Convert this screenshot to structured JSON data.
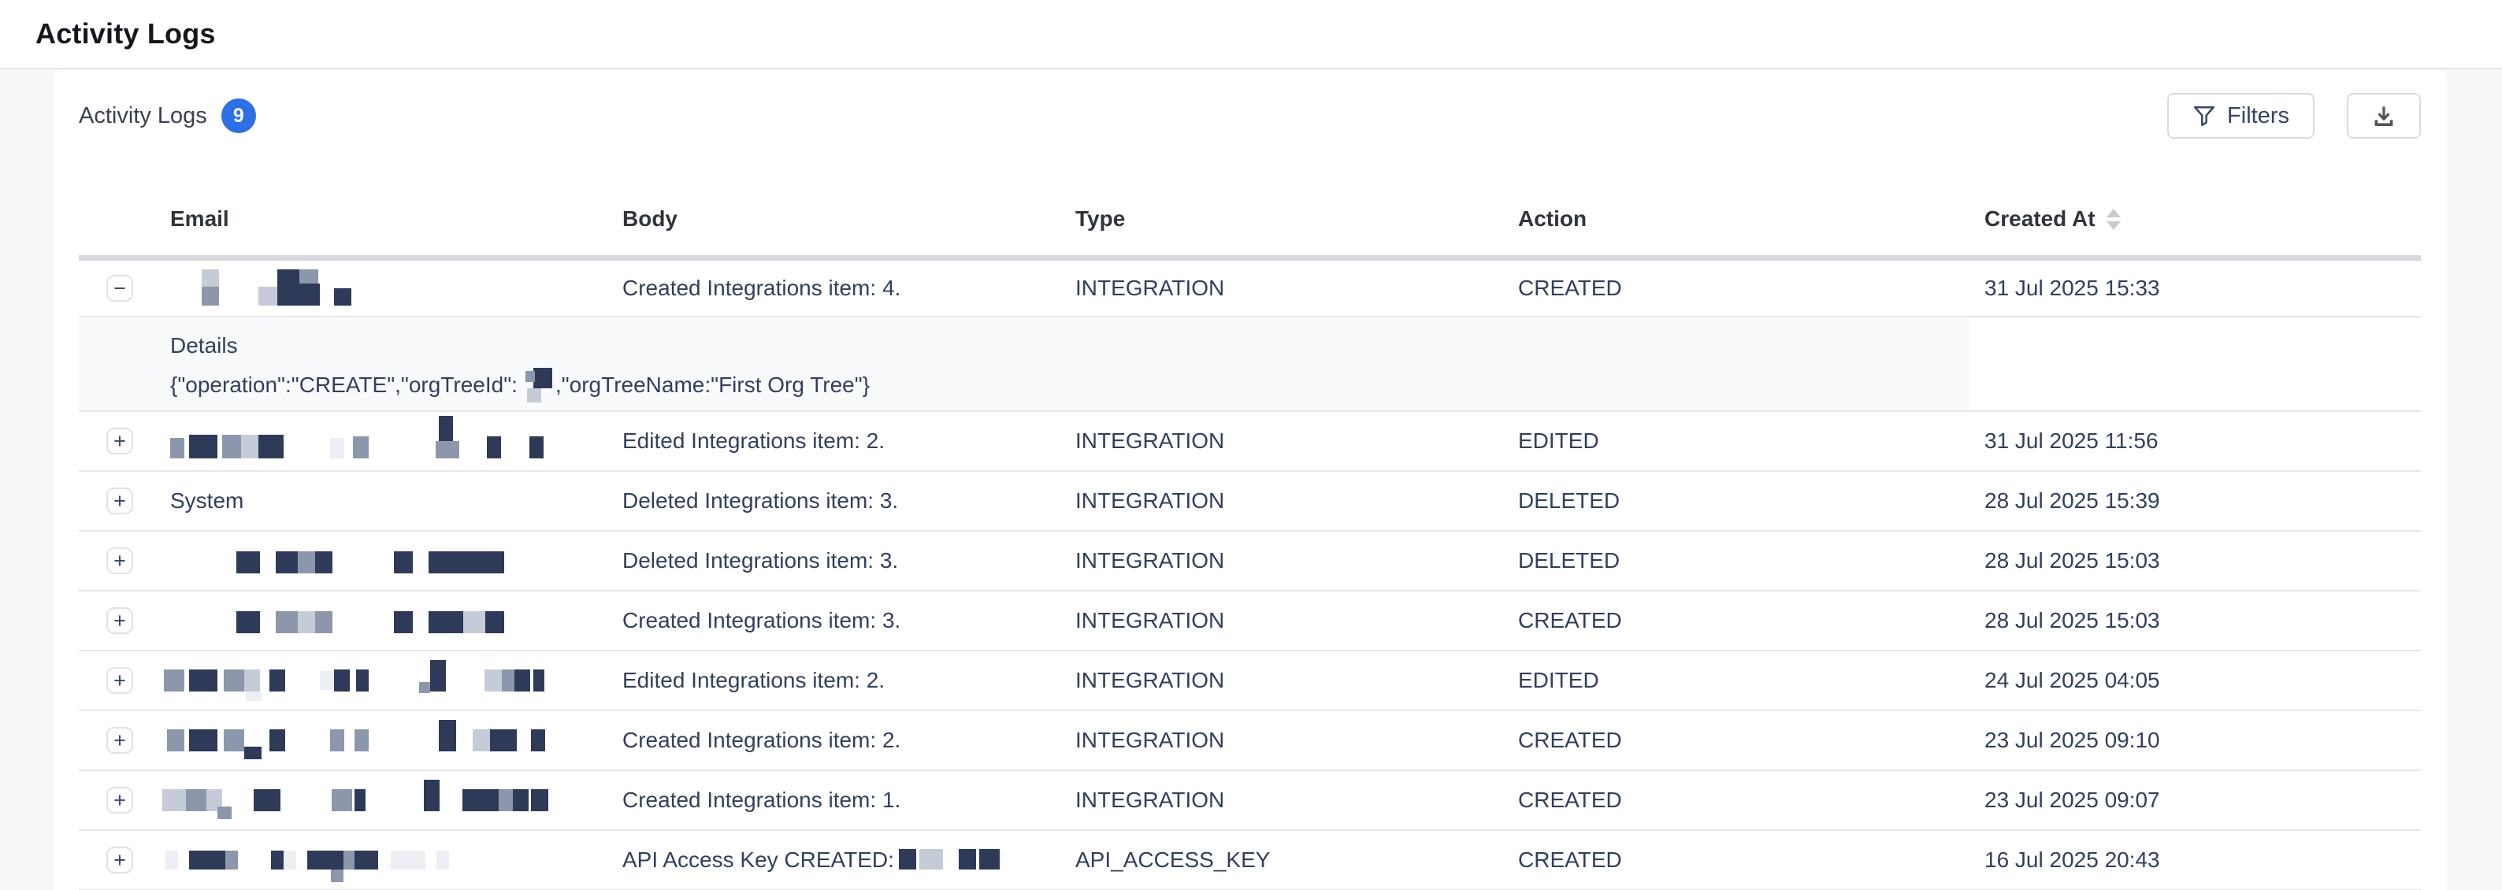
{
  "page": {
    "title": "Activity Logs"
  },
  "panel": {
    "heading": "Activity Logs",
    "count": "9",
    "filters_label": "Filters"
  },
  "table": {
    "columns": {
      "email": "Email",
      "body": "Body",
      "type": "Type",
      "action": "Action",
      "created_at": "Created At"
    },
    "sorted_column": "Created At",
    "rows": [
      {
        "expander": "−",
        "email_blocks": [
          [
            40,
            2,
            22,
            22,
            "l"
          ],
          [
            40,
            24,
            22,
            24,
            "m"
          ],
          [
            112,
            24,
            24,
            24,
            "l"
          ],
          [
            136,
            2,
            28,
            46,
            "n"
          ],
          [
            164,
            2,
            24,
            18,
            "m"
          ],
          [
            164,
            20,
            26,
            28,
            "n"
          ],
          [
            208,
            26,
            22,
            22,
            "n"
          ]
        ],
        "body": "Created Integrations item: 4.",
        "type": "INTEGRATION",
        "action": "CREATED",
        "created_at": "31 Jul 2025 15:33",
        "details": {
          "label": "Details",
          "json_prefix": "{\"operation\":\"CREATE\",\"orgTreeId\":",
          "json_suffix": ",\"orgTreeName:\"First Org Tree\"}",
          "block": [
            [
              10,
              2,
              24,
              26,
              "n"
            ],
            [
              0,
              6,
              12,
              14,
              "m"
            ],
            [
              2,
              28,
              18,
              18,
              "l"
            ]
          ]
        }
      },
      {
        "expander": "+",
        "email_blocks": [
          [
            0,
            22,
            18,
            26,
            "m"
          ],
          [
            24,
            18,
            36,
            30,
            "n"
          ],
          [
            66,
            18,
            24,
            30,
            "m"
          ],
          [
            90,
            18,
            22,
            30,
            "l"
          ],
          [
            112,
            18,
            32,
            30,
            "n"
          ],
          [
            203,
            22,
            18,
            26,
            "f"
          ],
          [
            232,
            20,
            20,
            28,
            "m"
          ],
          [
            341,
            -6,
            18,
            32,
            "n"
          ],
          [
            337,
            26,
            30,
            22,
            "m"
          ],
          [
            402,
            20,
            18,
            28,
            "n"
          ],
          [
            456,
            20,
            18,
            28,
            "n"
          ]
        ],
        "body": "Edited Integrations item: 2.",
        "type": "INTEGRATION",
        "action": "EDITED",
        "created_at": "31 Jul 2025 11:56"
      },
      {
        "expander": "+",
        "email_text": "System",
        "body": "Deleted Integrations item: 3.",
        "type": "INTEGRATION",
        "action": "DELETED",
        "created_at": "28 Jul 2025 15:39"
      },
      {
        "expander": "+",
        "email_blocks": [
          [
            84,
            14,
            30,
            28,
            "n"
          ],
          [
            134,
            14,
            28,
            28,
            "n"
          ],
          [
            162,
            14,
            22,
            28,
            "m"
          ],
          [
            184,
            14,
            22,
            28,
            "n"
          ],
          [
            284,
            14,
            24,
            28,
            "n"
          ],
          [
            328,
            14,
            96,
            28,
            "n"
          ]
        ],
        "body": "Deleted Integrations item: 3.",
        "type": "INTEGRATION",
        "action": "DELETED",
        "created_at": "28 Jul 2025 15:03"
      },
      {
        "expander": "+",
        "email_blocks": [
          [
            84,
            14,
            30,
            28,
            "n"
          ],
          [
            134,
            14,
            28,
            28,
            "m"
          ],
          [
            162,
            14,
            22,
            28,
            "l"
          ],
          [
            184,
            14,
            22,
            28,
            "m"
          ],
          [
            284,
            14,
            24,
            28,
            "n"
          ],
          [
            328,
            14,
            44,
            28,
            "n"
          ],
          [
            372,
            14,
            28,
            28,
            "l"
          ],
          [
            400,
            14,
            24,
            28,
            "n"
          ]
        ],
        "body": "Created Integrations item: 3.",
        "type": "INTEGRATION",
        "action": "CREATED",
        "created_at": "28 Jul 2025 15:03"
      },
      {
        "expander": "+",
        "email_blocks": [
          [
            -8,
            12,
            26,
            28,
            "m"
          ],
          [
            24,
            12,
            36,
            28,
            "n"
          ],
          [
            68,
            12,
            26,
            28,
            "m"
          ],
          [
            94,
            12,
            20,
            28,
            "l"
          ],
          [
            96,
            40,
            20,
            12,
            "f"
          ],
          [
            126,
            12,
            20,
            28,
            "n"
          ],
          [
            190,
            14,
            18,
            24,
            "f"
          ],
          [
            208,
            12,
            20,
            28,
            "n"
          ],
          [
            236,
            12,
            16,
            28,
            "n"
          ],
          [
            316,
            28,
            14,
            14,
            "m"
          ],
          [
            330,
            0,
            20,
            40,
            "n"
          ],
          [
            399,
            12,
            22,
            28,
            "l"
          ],
          [
            421,
            12,
            16,
            28,
            "m"
          ],
          [
            437,
            12,
            20,
            28,
            "n"
          ],
          [
            461,
            12,
            14,
            28,
            "n"
          ]
        ],
        "body": "Edited Integrations item: 2.",
        "type": "INTEGRATION",
        "action": "EDITED",
        "created_at": "24 Jul 2025 04:05"
      },
      {
        "expander": "+",
        "email_blocks": [
          [
            -4,
            12,
            22,
            28,
            "m"
          ],
          [
            24,
            12,
            36,
            28,
            "n"
          ],
          [
            68,
            12,
            26,
            28,
            "m"
          ],
          [
            94,
            34,
            22,
            16,
            "n"
          ],
          [
            126,
            12,
            20,
            28,
            "n"
          ],
          [
            203,
            12,
            18,
            28,
            "m"
          ],
          [
            234,
            12,
            18,
            28,
            "m"
          ],
          [
            341,
            0,
            22,
            40,
            "n"
          ],
          [
            384,
            12,
            22,
            28,
            "l"
          ],
          [
            406,
            12,
            34,
            28,
            "n"
          ],
          [
            458,
            12,
            18,
            28,
            "n"
          ]
        ],
        "body": "Created Integrations item: 2.",
        "type": "INTEGRATION",
        "action": "CREATED",
        "created_at": "23 Jul 2025 09:10"
      },
      {
        "expander": "+",
        "email_blocks": [
          [
            -10,
            12,
            30,
            28,
            "l"
          ],
          [
            20,
            12,
            26,
            28,
            "m"
          ],
          [
            46,
            12,
            20,
            28,
            "l"
          ],
          [
            60,
            34,
            18,
            16,
            "m"
          ],
          [
            106,
            12,
            34,
            28,
            "n"
          ],
          [
            205,
            12,
            26,
            28,
            "m"
          ],
          [
            234,
            12,
            14,
            28,
            "n"
          ],
          [
            322,
            0,
            20,
            40,
            "n"
          ],
          [
            371,
            12,
            46,
            28,
            "n"
          ],
          [
            417,
            12,
            18,
            28,
            "m"
          ],
          [
            435,
            12,
            20,
            28,
            "n"
          ],
          [
            458,
            12,
            22,
            28,
            "n"
          ]
        ],
        "body": "Created Integrations item: 1.",
        "type": "INTEGRATION",
        "action": "CREATED",
        "created_at": "23 Jul 2025 09:07"
      },
      {
        "expander": "+",
        "email_blocks": [
          [
            -6,
            14,
            16,
            24,
            "f"
          ],
          [
            24,
            14,
            46,
            24,
            "n"
          ],
          [
            70,
            14,
            16,
            24,
            "m"
          ],
          [
            128,
            14,
            16,
            24,
            "n"
          ],
          [
            144,
            14,
            16,
            24,
            "f"
          ],
          [
            174,
            14,
            46,
            24,
            "n"
          ],
          [
            220,
            14,
            14,
            24,
            "m"
          ],
          [
            204,
            38,
            16,
            16,
            "m"
          ],
          [
            234,
            14,
            30,
            24,
            "n"
          ],
          [
            280,
            14,
            44,
            24,
            "f"
          ],
          [
            338,
            14,
            16,
            24,
            "f"
          ]
        ],
        "body": "API Access Key CREATED:",
        "body_blocks": [
          [
            0,
            8,
            22,
            26,
            "n"
          ],
          [
            26,
            8,
            30,
            26,
            "l"
          ],
          [
            76,
            8,
            22,
            26,
            "n"
          ],
          [
            102,
            8,
            26,
            26,
            "n"
          ]
        ],
        "type": "API_ACCESS_KEY",
        "action": "CREATED",
        "created_at": "16 Jul 2025 20:43"
      }
    ]
  },
  "colors": {
    "accent_blue": "#2d70e3",
    "text_navy": "#333f5b",
    "redact_navy": "#2f3a59",
    "redact_gray": "#8d97ab",
    "redact_light": "#c5ccd7",
    "redact_faint": "#edeff4"
  }
}
